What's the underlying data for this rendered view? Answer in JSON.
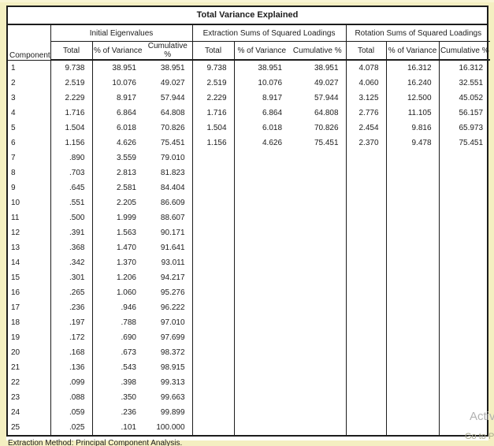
{
  "page": {
    "title": "Total Variance Explained",
    "footnote": "Extraction Method: Principal Component Analysis.",
    "watermark": {
      "line1": "Activa",
      "line2": "Go to P"
    }
  },
  "table": {
    "row_header": "Component",
    "groups": [
      {
        "label": "Initial Eigenvalues"
      },
      {
        "label": "Extraction Sums of Squared Loadings"
      },
      {
        "label": "Rotation Sums of Squared Loadings"
      }
    ],
    "sub_headers": [
      "Total",
      "% of Variance",
      "Cumulative %"
    ],
    "rows": [
      {
        "component": "1",
        "initial": [
          "9.738",
          "38.951",
          "38.951"
        ],
        "extraction": [
          "9.738",
          "38.951",
          "38.951"
        ],
        "rotation": [
          "4.078",
          "16.312",
          "16.312"
        ]
      },
      {
        "component": "2",
        "initial": [
          "2.519",
          "10.076",
          "49.027"
        ],
        "extraction": [
          "2.519",
          "10.076",
          "49.027"
        ],
        "rotation": [
          "4.060",
          "16.240",
          "32.551"
        ]
      },
      {
        "component": "3",
        "initial": [
          "2.229",
          "8.917",
          "57.944"
        ],
        "extraction": [
          "2.229",
          "8.917",
          "57.944"
        ],
        "rotation": [
          "3.125",
          "12.500",
          "45.052"
        ]
      },
      {
        "component": "4",
        "initial": [
          "1.716",
          "6.864",
          "64.808"
        ],
        "extraction": [
          "1.716",
          "6.864",
          "64.808"
        ],
        "rotation": [
          "2.776",
          "11.105",
          "56.157"
        ]
      },
      {
        "component": "5",
        "initial": [
          "1.504",
          "6.018",
          "70.826"
        ],
        "extraction": [
          "1.504",
          "6.018",
          "70.826"
        ],
        "rotation": [
          "2.454",
          "9.816",
          "65.973"
        ]
      },
      {
        "component": "6",
        "initial": [
          "1.156",
          "4.626",
          "75.451"
        ],
        "extraction": [
          "1.156",
          "4.626",
          "75.451"
        ],
        "rotation": [
          "2.370",
          "9.478",
          "75.451"
        ]
      },
      {
        "component": "7",
        "initial": [
          ".890",
          "3.559",
          "79.010"
        ],
        "extraction": [
          "",
          "",
          ""
        ],
        "rotation": [
          "",
          "",
          ""
        ]
      },
      {
        "component": "8",
        "initial": [
          ".703",
          "2.813",
          "81.823"
        ],
        "extraction": [
          "",
          "",
          ""
        ],
        "rotation": [
          "",
          "",
          ""
        ]
      },
      {
        "component": "9",
        "initial": [
          ".645",
          "2.581",
          "84.404"
        ],
        "extraction": [
          "",
          "",
          ""
        ],
        "rotation": [
          "",
          "",
          ""
        ]
      },
      {
        "component": "10",
        "initial": [
          ".551",
          "2.205",
          "86.609"
        ],
        "extraction": [
          "",
          "",
          ""
        ],
        "rotation": [
          "",
          "",
          ""
        ]
      },
      {
        "component": "11",
        "initial": [
          ".500",
          "1.999",
          "88.607"
        ],
        "extraction": [
          "",
          "",
          ""
        ],
        "rotation": [
          "",
          "",
          ""
        ]
      },
      {
        "component": "12",
        "initial": [
          ".391",
          "1.563",
          "90.171"
        ],
        "extraction": [
          "",
          "",
          ""
        ],
        "rotation": [
          "",
          "",
          ""
        ]
      },
      {
        "component": "13",
        "initial": [
          ".368",
          "1.470",
          "91.641"
        ],
        "extraction": [
          "",
          "",
          ""
        ],
        "rotation": [
          "",
          "",
          ""
        ]
      },
      {
        "component": "14",
        "initial": [
          ".342",
          "1.370",
          "93.011"
        ],
        "extraction": [
          "",
          "",
          ""
        ],
        "rotation": [
          "",
          "",
          ""
        ]
      },
      {
        "component": "15",
        "initial": [
          ".301",
          "1.206",
          "94.217"
        ],
        "extraction": [
          "",
          "",
          ""
        ],
        "rotation": [
          "",
          "",
          ""
        ]
      },
      {
        "component": "16",
        "initial": [
          ".265",
          "1.060",
          "95.276"
        ],
        "extraction": [
          "",
          "",
          ""
        ],
        "rotation": [
          "",
          "",
          ""
        ]
      },
      {
        "component": "17",
        "initial": [
          ".236",
          ".946",
          "96.222"
        ],
        "extraction": [
          "",
          "",
          ""
        ],
        "rotation": [
          "",
          "",
          ""
        ]
      },
      {
        "component": "18",
        "initial": [
          ".197",
          ".788",
          "97.010"
        ],
        "extraction": [
          "",
          "",
          ""
        ],
        "rotation": [
          "",
          "",
          ""
        ]
      },
      {
        "component": "19",
        "initial": [
          ".172",
          ".690",
          "97.699"
        ],
        "extraction": [
          "",
          "",
          ""
        ],
        "rotation": [
          "",
          "",
          ""
        ]
      },
      {
        "component": "20",
        "initial": [
          ".168",
          ".673",
          "98.372"
        ],
        "extraction": [
          "",
          "",
          ""
        ],
        "rotation": [
          "",
          "",
          ""
        ]
      },
      {
        "component": "21",
        "initial": [
          ".136",
          ".543",
          "98.915"
        ],
        "extraction": [
          "",
          "",
          ""
        ],
        "rotation": [
          "",
          "",
          ""
        ]
      },
      {
        "component": "22",
        "initial": [
          ".099",
          ".398",
          "99.313"
        ],
        "extraction": [
          "",
          "",
          ""
        ],
        "rotation": [
          "",
          "",
          ""
        ]
      },
      {
        "component": "23",
        "initial": [
          ".088",
          ".350",
          "99.663"
        ],
        "extraction": [
          "",
          "",
          ""
        ],
        "rotation": [
          "",
          "",
          ""
        ]
      },
      {
        "component": "24",
        "initial": [
          ".059",
          ".236",
          "99.899"
        ],
        "extraction": [
          "",
          "",
          ""
        ],
        "rotation": [
          "",
          "",
          ""
        ]
      },
      {
        "component": "25",
        "initial": [
          ".025",
          ".101",
          "100.000"
        ],
        "extraction": [
          "",
          "",
          ""
        ],
        "rotation": [
          "",
          "",
          ""
        ]
      }
    ]
  },
  "colors": {
    "page_background": "#f4efc1",
    "table_border": "#1c1c1c",
    "watermark_gray": "#b2b2b2"
  }
}
